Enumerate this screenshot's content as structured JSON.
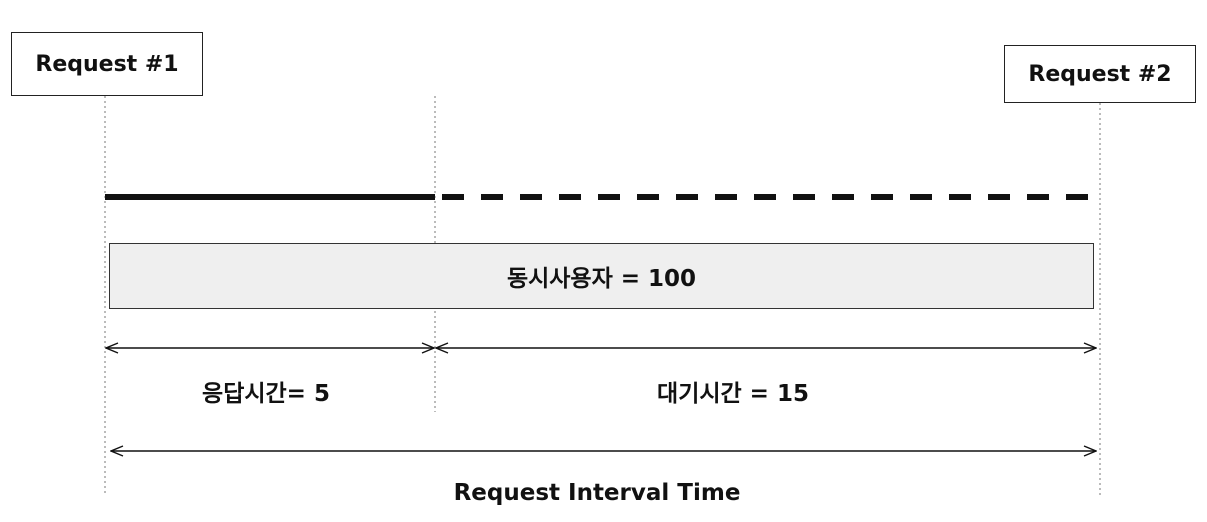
{
  "diagram": {
    "request1": "Request #1",
    "request2": "Request #2",
    "concurrent_users": "동시사용자 = 100",
    "response_time": "응답시간= 5",
    "wait_time": "대기시간 = 15",
    "interval": "Request Interval Time"
  },
  "colors": {
    "line": "#111111",
    "bar_fill": "#efefef",
    "guide": "#777777"
  }
}
